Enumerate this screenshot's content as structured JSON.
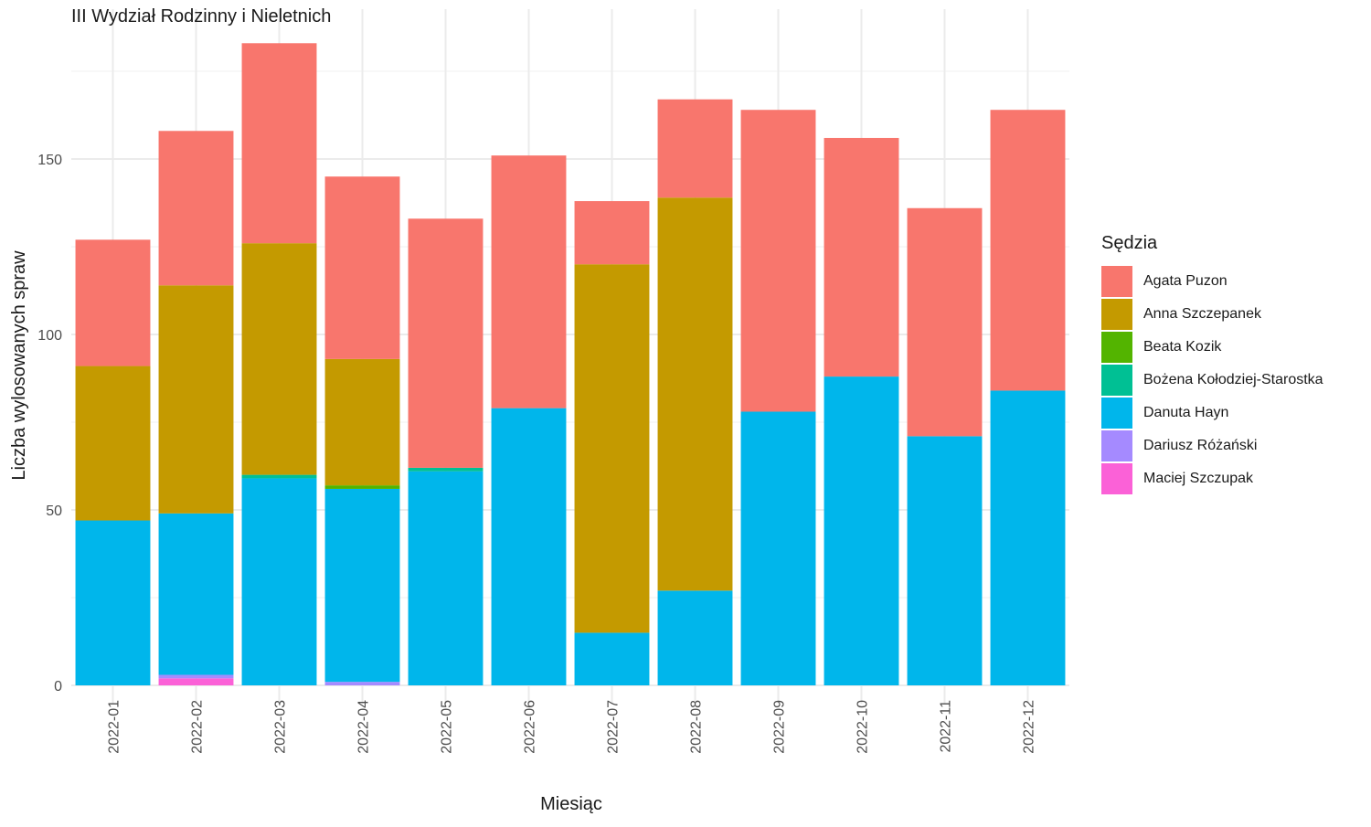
{
  "chart_data": {
    "type": "bar",
    "stacked": true,
    "title": "III Wydział Rodzinny i Nieletnich",
    "xlabel": "Miesiąc",
    "ylabel": "Liczba wylosowanych spraw",
    "ylim": [
      0,
      185
    ],
    "yticks": [
      0,
      50,
      100,
      150
    ],
    "grid": true,
    "legend_title": "Sędzia",
    "legend_position": "right",
    "categories": [
      "2022-01",
      "2022-02",
      "2022-03",
      "2022-04",
      "2022-05",
      "2022-06",
      "2022-07",
      "2022-08",
      "2022-09",
      "2022-10",
      "2022-11",
      "2022-12"
    ],
    "series": [
      {
        "name": "Agata Puzon",
        "color": "#F8766D",
        "values": [
          36,
          44,
          57,
          52,
          71,
          72,
          18,
          28,
          86,
          68,
          65,
          80
        ]
      },
      {
        "name": "Anna Szczepanek",
        "color": "#C49A00",
        "values": [
          44,
          65,
          66,
          36,
          0,
          0,
          105,
          112,
          0,
          0,
          0,
          0
        ]
      },
      {
        "name": "Beata Kozik",
        "color": "#53B400",
        "values": [
          0,
          0,
          0,
          1,
          0,
          0,
          0,
          0,
          0,
          0,
          0,
          0
        ]
      },
      {
        "name": "Bożena Kołodziej-Starostka",
        "color": "#00C094",
        "values": [
          0,
          0,
          1,
          0,
          1,
          0,
          0,
          0,
          0,
          0,
          0,
          0
        ]
      },
      {
        "name": "Danuta Hayn",
        "color": "#00B6EB",
        "values": [
          47,
          46,
          59,
          55,
          61,
          79,
          15,
          27,
          78,
          88,
          71,
          84
        ]
      },
      {
        "name": "Dariusz Różański",
        "color": "#A58AFF",
        "values": [
          0,
          1,
          0,
          1,
          0,
          0,
          0,
          0,
          0,
          0,
          0,
          0
        ]
      },
      {
        "name": "Maciej Szczupak",
        "color": "#FB61D7",
        "values": [
          0,
          2,
          0,
          0,
          0,
          0,
          0,
          0,
          0,
          0,
          0,
          0
        ]
      }
    ]
  }
}
